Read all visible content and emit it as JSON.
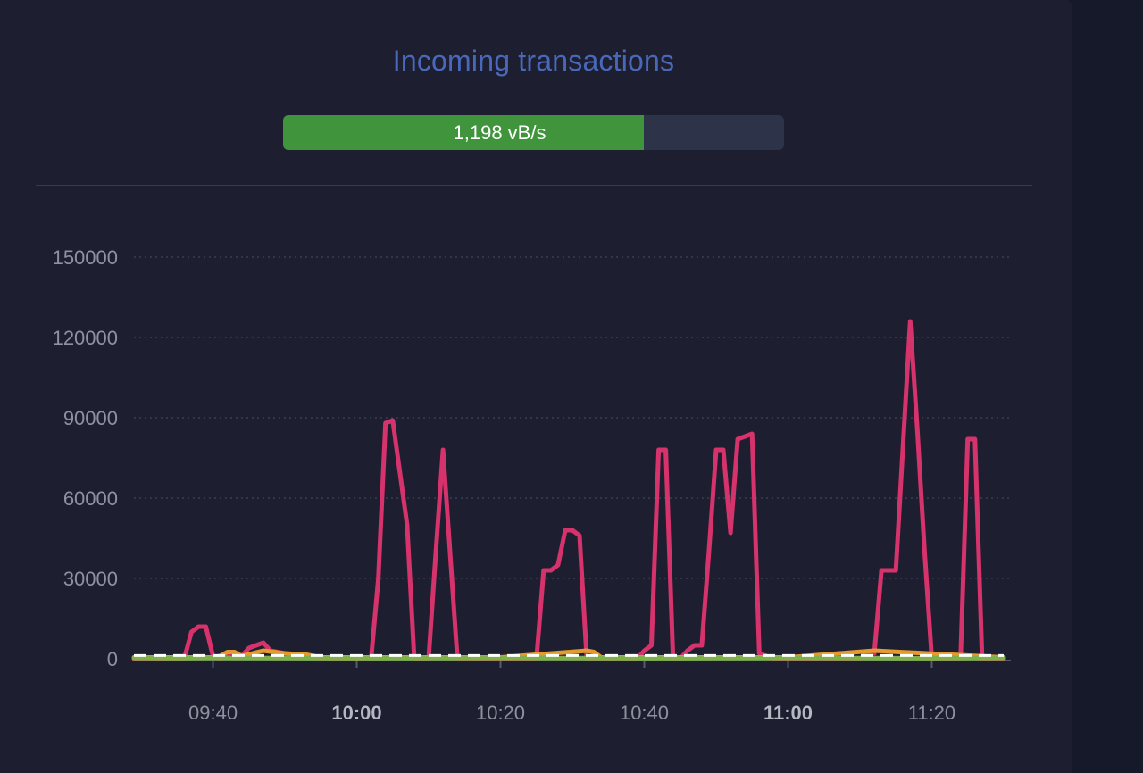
{
  "widget": {
    "title": "Incoming transactions",
    "progress": {
      "label": "1,198 vB/s",
      "fraction": 0.72,
      "color": "#3f943c",
      "track_color": "#2d3348"
    }
  },
  "chart_data": {
    "type": "line",
    "title": "",
    "xlabel": "",
    "ylabel": "",
    "x_unit": "time (HH:MM)",
    "xlim": [
      "09:29",
      "11:31"
    ],
    "ylim": [
      0,
      160000
    ],
    "yticks": [
      0,
      30000,
      60000,
      90000,
      120000,
      150000
    ],
    "xticks": [
      {
        "label": "09:40",
        "value": "09:40",
        "bold": false
      },
      {
        "label": "10:00",
        "value": "10:00",
        "bold": true
      },
      {
        "label": "10:20",
        "value": "10:20",
        "bold": false
      },
      {
        "label": "10:40",
        "value": "10:40",
        "bold": false
      },
      {
        "label": "11:00",
        "value": "11:00",
        "bold": true
      },
      {
        "label": "11:20",
        "value": "11:20",
        "bold": false
      }
    ],
    "grid": {
      "horizontal": true,
      "style": "dotted"
    },
    "series": [
      {
        "color": "#d6336c",
        "x": [
          "09:29",
          "09:36",
          "09:37",
          "09:38",
          "09:39",
          "09:40",
          "09:41",
          "09:42",
          "09:43",
          "09:44",
          "09:45",
          "09:46",
          "09:47",
          "09:48",
          "09:50",
          "09:55",
          "10:00",
          "10:02",
          "10:03",
          "10:04",
          "10:05",
          "10:07",
          "10:08",
          "10:09",
          "10:10",
          "10:11",
          "10:12",
          "10:14",
          "10:20",
          "10:24",
          "10:25",
          "10:26",
          "10:27",
          "10:28",
          "10:29",
          "10:30",
          "10:31",
          "10:32",
          "10:33",
          "10:38",
          "10:39",
          "10:40",
          "10:41",
          "10:42",
          "10:43",
          "10:44",
          "10:45",
          "10:46",
          "10:47",
          "10:48",
          "10:49",
          "10:50",
          "10:51",
          "10:52",
          "10:53",
          "10:54",
          "10:55",
          "10:56",
          "10:57",
          "10:58",
          "10:59",
          "11:05",
          "11:10",
          "11:11",
          "11:12",
          "11:13",
          "11:14",
          "11:15",
          "11:16",
          "11:17",
          "11:18",
          "11:19",
          "11:20",
          "11:21",
          "11:22",
          "11:23",
          "11:24",
          "11:25",
          "11:26",
          "11:27",
          "11:28",
          "11:30"
        ],
        "y": [
          0,
          0,
          10000,
          12000,
          12000,
          1000,
          0,
          2000,
          2000,
          1000,
          4000,
          5000,
          6000,
          3000,
          2000,
          0,
          0,
          0,
          30000,
          88000,
          89000,
          50000,
          0,
          0,
          0,
          40000,
          78000,
          0,
          0,
          0,
          0,
          33000,
          33000,
          35000,
          48000,
          48000,
          46000,
          0,
          0,
          0,
          0,
          3000,
          5000,
          78000,
          78000,
          0,
          0,
          3000,
          5000,
          5000,
          40000,
          78000,
          78000,
          47000,
          82000,
          83000,
          84000,
          2000,
          1000,
          0,
          0,
          0,
          0,
          2000,
          2000,
          33000,
          33000,
          33000,
          80000,
          126000,
          85000,
          40000,
          0,
          0,
          0,
          0,
          0,
          82000,
          82000,
          0,
          0,
          0
        ]
      },
      {
        "color": "#e39a2e",
        "x": [
          "09:29",
          "09:40",
          "09:41",
          "09:42",
          "09:43",
          "09:44",
          "09:47",
          "09:50",
          "09:53",
          "09:55",
          "10:00",
          "10:10",
          "10:20",
          "10:32",
          "10:33",
          "10:34",
          "10:40",
          "11:00",
          "11:12",
          "11:30"
        ],
        "y": [
          500,
          500,
          1000,
          2500,
          2500,
          1000,
          3000,
          2000,
          1500,
          500,
          500,
          500,
          500,
          3000,
          2500,
          500,
          500,
          500,
          3000,
          500
        ]
      },
      {
        "color": "#7fb04a",
        "x": [
          "09:29",
          "09:35",
          "09:40",
          "10:00",
          "10:20",
          "10:40",
          "11:00",
          "11:20",
          "11:30"
        ],
        "y": [
          300,
          200,
          300,
          200,
          300,
          200,
          300,
          200,
          300
        ]
      },
      {
        "color": "#ffffff",
        "style": "dashed",
        "x": [
          "09:29",
          "11:30"
        ],
        "y": [
          1198,
          1198
        ]
      }
    ]
  }
}
